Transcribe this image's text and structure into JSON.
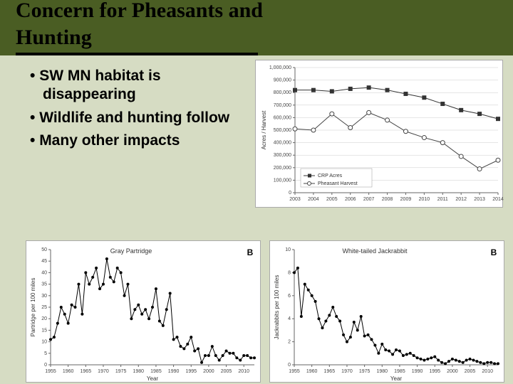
{
  "title": "Concern for Pheasants and\nHunting",
  "bullets": [
    "SW MN habitat is disappearing",
    "Wildlife and hunting follow",
    "Many other impacts"
  ],
  "top_chart": {
    "type": "line",
    "ylabel": "Acres / Harvest",
    "xlabel": "",
    "ylim": [
      0,
      1000000
    ],
    "ytick_step": 100000,
    "ytick_labels": [
      "0",
      "100,000",
      "200,000",
      "300,000",
      "400,000",
      "500,000",
      "600,000",
      "700,000",
      "800,000",
      "900,000",
      "1,000,000"
    ],
    "x_categories": [
      "2003",
      "2004",
      "2005",
      "2006",
      "2007",
      "2008",
      "2009",
      "2010",
      "2011",
      "2012",
      "2013",
      "2014"
    ],
    "series": [
      {
        "name": "CRP Acres",
        "marker": "square-filled",
        "color": "#333333",
        "values": [
          820000,
          820000,
          810000,
          830000,
          840000,
          820000,
          790000,
          760000,
          710000,
          660000,
          630000,
          590000
        ]
      },
      {
        "name": "Pheasant Harvest",
        "marker": "circle-open",
        "color": "#444444",
        "values": [
          510000,
          500000,
          630000,
          520000,
          640000,
          580000,
          490000,
          440000,
          400000,
          290000,
          190000,
          260000
        ]
      }
    ],
    "background_color": "#ffffff",
    "grid_color": "#cccccc",
    "line_width": 1.2,
    "marker_size": 3
  },
  "bl_chart": {
    "type": "line",
    "panel_label": "B",
    "title": "Gray Partridge",
    "ylabel": "Partridge per 100 miles",
    "xlabel": "Year",
    "ylim": [
      0,
      50
    ],
    "ytick_step": 5,
    "x_categories": [
      "1955",
      "1960",
      "1965",
      "1970",
      "1975",
      "1980",
      "1985",
      "1990",
      "1995",
      "2000",
      "2005",
      "2010"
    ],
    "x_years": [
      1955,
      1956,
      1957,
      1958,
      1959,
      1960,
      1961,
      1962,
      1963,
      1964,
      1965,
      1966,
      1967,
      1968,
      1969,
      1970,
      1971,
      1972,
      1973,
      1974,
      1975,
      1976,
      1977,
      1978,
      1979,
      1980,
      1981,
      1982,
      1983,
      1984,
      1985,
      1986,
      1987,
      1988,
      1989,
      1990,
      1991,
      1992,
      1993,
      1994,
      1995,
      1996,
      1997,
      1998,
      1999,
      2000,
      2001,
      2002,
      2003,
      2004,
      2005,
      2006,
      2007,
      2008,
      2009,
      2010,
      2011,
      2012,
      2013
    ],
    "series": [
      {
        "name": "Gray Partridge",
        "marker": "circle-filled",
        "color": "#000000",
        "values": [
          11,
          12,
          18,
          25,
          22,
          18,
          26,
          25,
          35,
          22,
          40,
          35,
          38,
          42,
          33,
          35,
          46,
          38,
          36,
          42,
          40,
          30,
          35,
          20,
          24,
          26,
          22,
          24,
          20,
          25,
          33,
          19,
          17,
          24,
          31,
          11,
          12,
          8,
          7,
          9,
          12,
          6,
          7,
          1,
          4,
          4,
          8,
          4,
          2,
          4,
          6,
          5,
          5,
          3,
          2,
          4,
          4,
          3,
          3
        ]
      }
    ],
    "background_color": "#ffffff",
    "line_width": 1,
    "marker_size": 2
  },
  "br_chart": {
    "type": "line",
    "panel_label": "B",
    "title": "White-tailed Jackrabbit",
    "ylabel": "Jackrabbits per 100 miles",
    "xlabel": "Year",
    "ylim": [
      0,
      10
    ],
    "ytick_step": 2,
    "x_categories": [
      "1955",
      "1960",
      "1965",
      "1970",
      "1975",
      "1980",
      "1985",
      "1990",
      "1995",
      "2000",
      "2005",
      "2010"
    ],
    "x_years": [
      1955,
      1956,
      1957,
      1958,
      1959,
      1960,
      1961,
      1962,
      1963,
      1964,
      1965,
      1966,
      1967,
      1968,
      1969,
      1970,
      1971,
      1972,
      1973,
      1974,
      1975,
      1976,
      1977,
      1978,
      1979,
      1980,
      1981,
      1982,
      1983,
      1984,
      1985,
      1986,
      1987,
      1988,
      1989,
      1990,
      1991,
      1992,
      1993,
      1994,
      1995,
      1996,
      1997,
      1998,
      1999,
      2000,
      2001,
      2002,
      2003,
      2004,
      2005,
      2006,
      2007,
      2008,
      2009,
      2010,
      2011,
      2012,
      2013
    ],
    "series": [
      {
        "name": "White-tailed Jackrabbit",
        "marker": "circle-filled",
        "color": "#000000",
        "values": [
          8.0,
          8.4,
          4.2,
          7.0,
          6.5,
          6.0,
          5.5,
          4.0,
          3.2,
          3.8,
          4.3,
          5.0,
          4.2,
          3.8,
          2.6,
          2.0,
          2.4,
          3.7,
          3.0,
          4.2,
          2.5,
          2.6,
          2.2,
          1.7,
          1.0,
          1.8,
          1.3,
          1.2,
          0.9,
          1.3,
          1.2,
          0.8,
          0.9,
          1.0,
          0.8,
          0.6,
          0.5,
          0.4,
          0.5,
          0.6,
          0.7,
          0.4,
          0.2,
          0.1,
          0.3,
          0.5,
          0.4,
          0.3,
          0.2,
          0.4,
          0.5,
          0.4,
          0.3,
          0.2,
          0.1,
          0.2,
          0.2,
          0.1,
          0.1
        ]
      }
    ],
    "background_color": "#ffffff",
    "line_width": 1,
    "marker_size": 2
  },
  "colors": {
    "slide_bg": "#d6dcc3",
    "header_bg": "#4a5d23",
    "underline": "#000000"
  }
}
